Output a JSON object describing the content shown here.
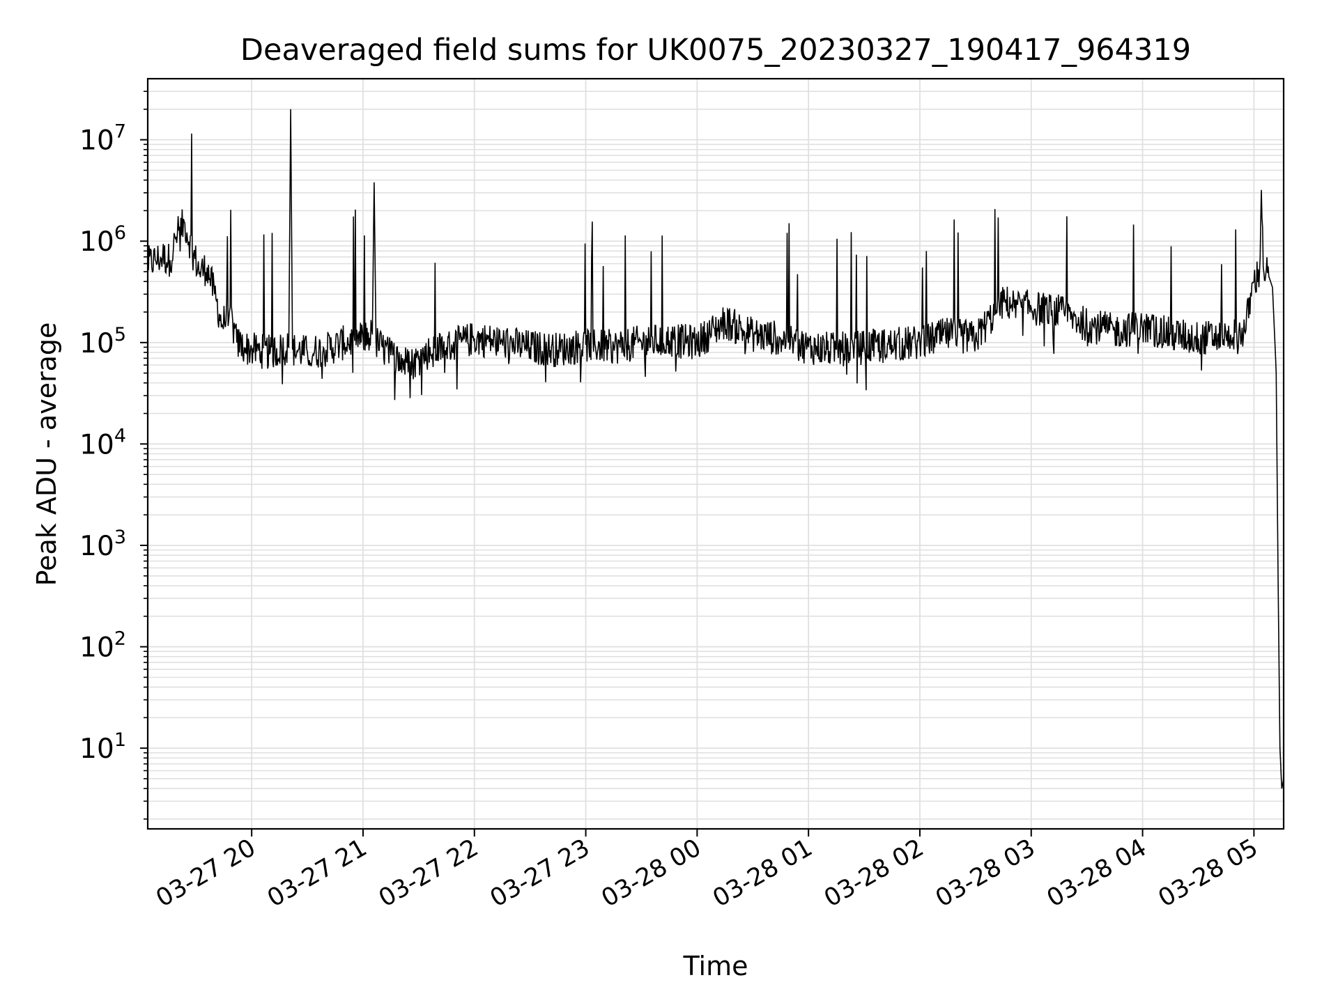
{
  "chart_data": {
    "type": "line",
    "title": "Deaveraged field sums for UK0075_20230327_190417_964319",
    "xlabel": "Time",
    "ylabel": "Peak ADU - average",
    "yscale": "log",
    "ylim": [
      1.6,
      40000000
    ],
    "xlim": [
      "03-27 19:04",
      "03-28 05:16"
    ],
    "grid": true,
    "line_color": "#000000",
    "grid_color": "#e0e0e0",
    "x_ticks": [
      "03-27 20",
      "03-27 21",
      "03-27 22",
      "03-27 23",
      "03-28 00",
      "03-28 01",
      "03-28 02",
      "03-28 03",
      "03-28 04",
      "03-28 05"
    ],
    "y_ticks": [
      {
        "base": "10",
        "exp": "1",
        "value": 10
      },
      {
        "base": "10",
        "exp": "2",
        "value": 100
      },
      {
        "base": "10",
        "exp": "3",
        "value": 1000
      },
      {
        "base": "10",
        "exp": "4",
        "value": 10000
      },
      {
        "base": "10",
        "exp": "5",
        "value": 100000
      },
      {
        "base": "10",
        "exp": "6",
        "value": 1000000
      },
      {
        "base": "10",
        "exp": "7",
        "value": 10000000
      }
    ],
    "series": [
      {
        "x": [
          "03-27 19:04",
          "03-27 19:08",
          "03-27 19:12",
          "03-27 19:16",
          "03-27 19:20",
          "03-27 19:24",
          "03-27 19:28",
          "03-27 19:32",
          "03-27 19:36",
          "03-27 19:40",
          "03-27 19:44",
          "03-27 19:48",
          "03-27 19:52",
          "03-27 19:56",
          "03-27 20:00",
          "03-27 20:10",
          "03-27 20:20",
          "03-27 20:21",
          "03-27 20:22",
          "03-27 20:30",
          "03-27 20:40",
          "03-27 20:50",
          "03-27 21:00",
          "03-27 21:05",
          "03-27 21:06",
          "03-27 21:07",
          "03-27 21:15",
          "03-27 21:25",
          "03-27 21:35",
          "03-27 21:45",
          "03-27 22:00",
          "03-27 22:15",
          "03-27 22:30",
          "03-27 22:45",
          "03-27 23:00",
          "03-27 23:15",
          "03-27 23:30",
          "03-27 23:45",
          "03-28 00:00",
          "03-28 00:15",
          "03-28 00:30",
          "03-28 00:45",
          "03-28 01:00",
          "03-28 01:15",
          "03-28 01:30",
          "03-28 01:45",
          "03-28 02:00",
          "03-28 02:15",
          "03-28 02:30",
          "03-28 02:45",
          "03-28 03:00",
          "03-28 03:15",
          "03-28 03:30",
          "03-28 03:45",
          "03-28 04:00",
          "03-28 04:15",
          "03-28 04:30",
          "03-28 04:45",
          "03-28 04:55",
          "03-28 05:00",
          "03-28 05:03",
          "03-28 05:04",
          "03-28 05:05",
          "03-28 05:08",
          "03-28 05:10",
          "03-28 05:12",
          "03-28 05:13",
          "03-28 05:14",
          "03-28 05:15",
          "03-28 05:16"
        ],
        "y": [
          600000,
          650000,
          700000,
          650000,
          1200000,
          1500000,
          800000,
          500000,
          550000,
          300000,
          150000,
          200000,
          100000,
          90000,
          85000,
          80000,
          90000,
          20000000,
          85000,
          80000,
          85000,
          100000,
          110000,
          120000,
          3800000,
          100000,
          75000,
          60000,
          80000,
          90000,
          110000,
          100000,
          90000,
          85000,
          95000,
          90000,
          100000,
          105000,
          100000,
          160000,
          120000,
          110000,
          90000,
          85000,
          90000,
          95000,
          100000,
          120000,
          110000,
          250000,
          220000,
          200000,
          150000,
          130000,
          140000,
          120000,
          110000,
          115000,
          130000,
          400000,
          500000,
          3200000,
          550000,
          450000,
          350000,
          50000,
          500,
          10,
          4,
          5
        ]
      }
    ]
  }
}
